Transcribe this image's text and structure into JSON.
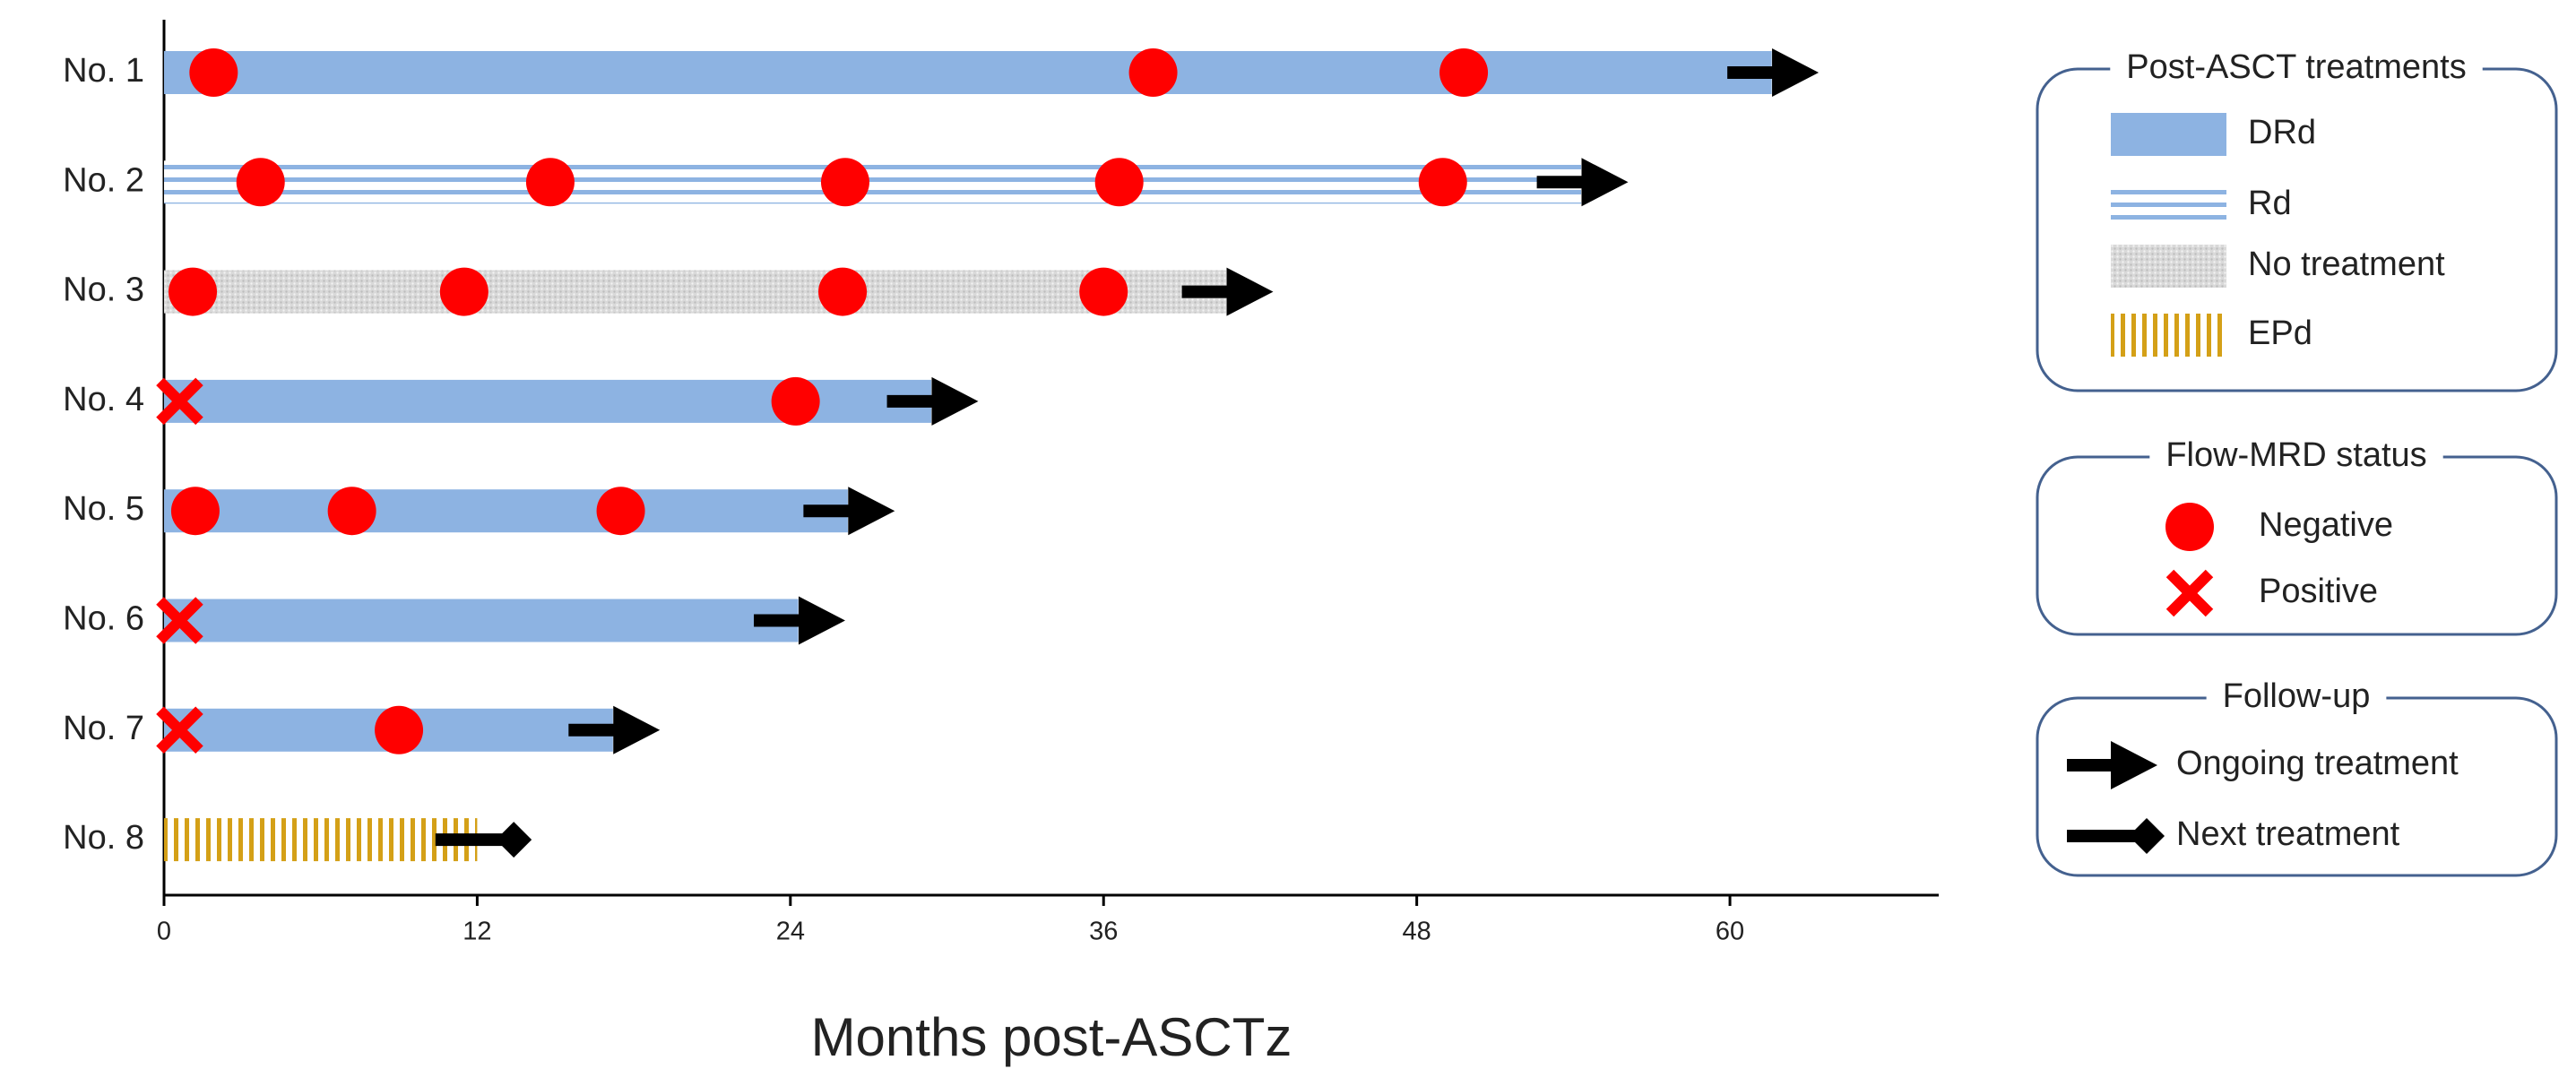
{
  "chart_data": {
    "type": "swimmer",
    "xlabel": "Months post-ASCTz",
    "xlim": [
      0,
      68
    ],
    "xticks": [
      0,
      12,
      24,
      36,
      48,
      60
    ],
    "patients": [
      {
        "label": "No. 1",
        "treatment": "DRd",
        "duration": 61.6,
        "negative": [
          1.9,
          37.9,
          49.8
        ],
        "follow_up": "Ongoing treatment"
      },
      {
        "label": "No. 2",
        "treatment": "Rd",
        "duration": 54.3,
        "negative": [
          3.7,
          14.8,
          26.1,
          36.6,
          49.0
        ],
        "follow_up": "Ongoing treatment"
      },
      {
        "label": "No. 3",
        "treatment": "No treatment",
        "duration": 40.7,
        "negative": [
          1.1,
          11.5,
          26.0,
          36.0
        ],
        "follow_up": "Ongoing treatment"
      },
      {
        "label": "No. 4",
        "treatment": "DRd",
        "duration": 29.4,
        "negative": [
          24.2
        ],
        "positive": [
          0.6
        ],
        "follow_up": "Ongoing treatment"
      },
      {
        "label": "No. 5",
        "treatment": "DRd",
        "duration": 26.2,
        "negative": [
          1.2,
          7.2,
          17.5
        ],
        "follow_up": "Ongoing treatment"
      },
      {
        "label": "No. 6",
        "treatment": "DRd",
        "duration": 24.3,
        "positive": [
          0.6
        ],
        "follow_up": "Ongoing treatment"
      },
      {
        "label": "No. 7",
        "treatment": "DRd",
        "duration": 17.2,
        "negative": [
          9.0
        ],
        "positive": [
          0.6
        ],
        "follow_up": "Ongoing treatment"
      },
      {
        "label": "No. 8",
        "treatment": "EPd",
        "duration": 12.0,
        "follow_up": "Next treatment"
      }
    ],
    "legend": {
      "treatments": {
        "title": "Post-ASCT treatments",
        "items": [
          {
            "name": "DRd",
            "pattern": "solid",
            "color": "#8db3e2"
          },
          {
            "name": "Rd",
            "pattern": "horizontal-stripes",
            "color": "#8db3e2"
          },
          {
            "name": "No treatment",
            "pattern": "dots",
            "color": "#d9d9d9"
          },
          {
            "name": "EPd",
            "pattern": "vertical-stripes",
            "color": "#d4a017"
          }
        ]
      },
      "mrd": {
        "title": "Flow-MRD status",
        "items": [
          {
            "name": "Negative",
            "marker": "circle",
            "color": "#ff0000"
          },
          {
            "name": "Positive",
            "marker": "cross",
            "color": "#ff0000"
          }
        ]
      },
      "follow_up": {
        "title": "Follow-up",
        "items": [
          {
            "name": "Ongoing treatment",
            "marker": "arrow",
            "color": "#000000"
          },
          {
            "name": "Next treatment",
            "marker": "diamond",
            "color": "#000000"
          }
        ]
      }
    }
  }
}
